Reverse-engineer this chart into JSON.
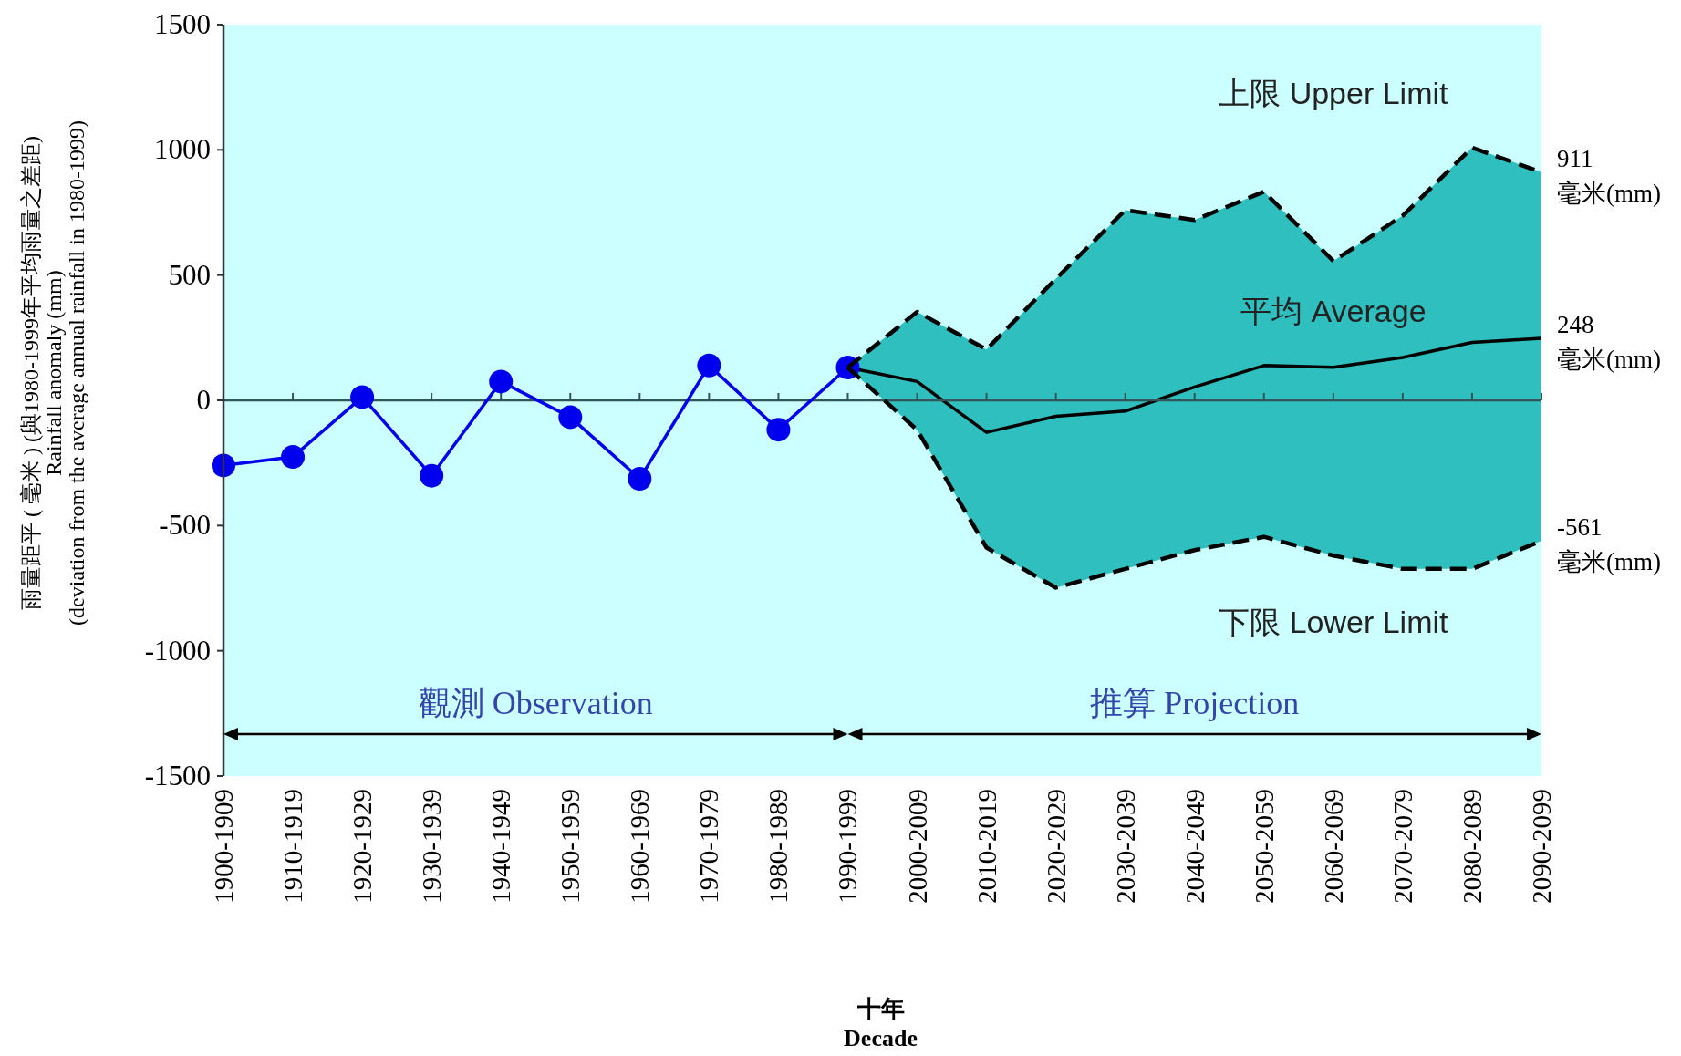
{
  "chart_data": {
    "type": "line",
    "xlabel": "十年\nDecade",
    "ylabel": "雨量距平 ( 毫米 ) (與1980-1999年平均雨量之差距)\nRainfall anomaly (mm)\n(deviation from the average annual rainfall in 1980-1999)",
    "categories": [
      "1900-1909",
      "1910-1919",
      "1920-1929",
      "1930-1939",
      "1940-1949",
      "1950-1959",
      "1960-1969",
      "1970-1979",
      "1980-1989",
      "1990-1999",
      "2000-2009",
      "2010-2019",
      "2020-2029",
      "2030-2039",
      "2040-2049",
      "2050-2059",
      "2060-2069",
      "2070-2079",
      "2080-2089",
      "2090-2099"
    ],
    "series": [
      {
        "color": "#0000ee",
        "marker": "circle",
        "line_style": "solid",
        "values": [
          -260,
          -226,
          13,
          -301,
          75,
          -67,
          -313,
          139,
          -117,
          131,
          null,
          null,
          null,
          null,
          null,
          null,
          null,
          null,
          null,
          null
        ]
      },
      {
        "name": "平均 Average",
        "color": "#000000",
        "marker": "none",
        "line_style": "solid",
        "values": [
          null,
          null,
          null,
          null,
          null,
          null,
          null,
          null,
          null,
          131,
          75,
          -128,
          -64,
          -43,
          53,
          139,
          132,
          171,
          231,
          248
        ],
        "upper": [
          null,
          null,
          null,
          null,
          null,
          null,
          null,
          null,
          null,
          131,
          353,
          203,
          485,
          759,
          720,
          833,
          556,
          737,
          1009,
          911
        ],
        "lower": [
          null,
          null,
          null,
          null,
          null,
          null,
          null,
          null,
          null,
          131,
          -118,
          -588,
          -748,
          -673,
          -598,
          -545,
          -620,
          -673,
          -673,
          -561
        ]
      },
      {
        "name": "上限 Upper Limit",
        "color": "#000000",
        "marker": "none",
        "line_style": "dashed",
        "values": [
          null,
          null,
          null,
          null,
          null,
          null,
          null,
          null,
          null,
          131,
          353,
          203,
          485,
          759,
          720,
          833,
          556,
          737,
          1009,
          911
        ]
      },
      {
        "name": "下限 Lower Limit",
        "color": "#000000",
        "marker": "none",
        "line_style": "dashed",
        "values": [
          null,
          null,
          null,
          null,
          null,
          null,
          null,
          null,
          null,
          131,
          -118,
          -588,
          -748,
          -673,
          -598,
          -545,
          -620,
          -673,
          -673,
          -561
        ]
      }
    ],
    "ylim": [
      -1500,
      1500
    ],
    "yticks": [
      -1500,
      -1000,
      -500,
      0,
      500,
      1000,
      1500
    ],
    "annotations": [
      "觀測 Observation",
      "推算 Projection",
      {
        "text": "911\n毫米(mm)",
        "x": "2090-2099",
        "y": 911
      },
      {
        "text": "248\n毫米(mm)",
        "x": "2090-2099",
        "y": 248
      },
      {
        "text": "-561\n毫米(mm)",
        "x": "2090-2099",
        "y": -561
      }
    ]
  }
}
